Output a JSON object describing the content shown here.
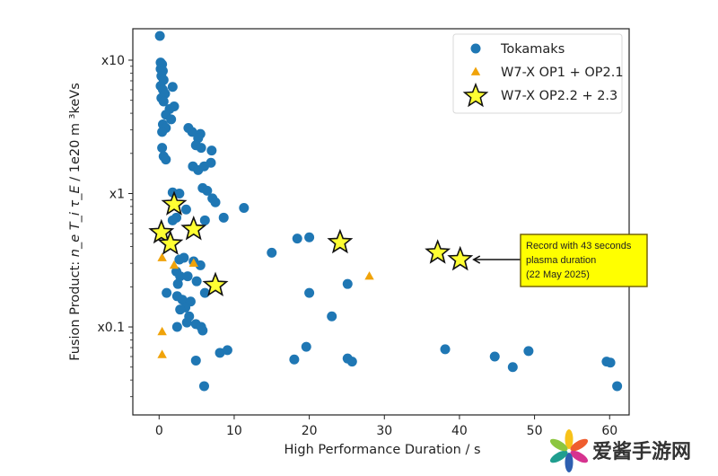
{
  "chart_data": {
    "type": "scatter",
    "title": "",
    "xlabel": "High Performance Duration / s",
    "ylabel_parts": {
      "prefix": "Fusion Product:  ",
      "math": "n_e T_i τ_E",
      "suffix": " /  1e20 m  ³keVs"
    },
    "xlim": [
      -3.5,
      62.6
    ],
    "ylim": [
      0.0219,
      17.2
    ],
    "yscale": "log",
    "x_ticks": [
      {
        "value": 0,
        "label": "0"
      },
      {
        "value": 10,
        "label": "10"
      },
      {
        "value": 20,
        "label": "20"
      },
      {
        "value": 30,
        "label": "30"
      },
      {
        "value": 40,
        "label": "40"
      },
      {
        "value": 50,
        "label": "50"
      },
      {
        "value": 60,
        "label": "60"
      }
    ],
    "y_ticks": [
      {
        "value": 10,
        "label": "x10"
      },
      {
        "value": 1,
        "label": "x1"
      },
      {
        "value": 0.1,
        "label": "x0.1"
      }
    ],
    "grid": false,
    "legend_position": "top-right",
    "series": [
      {
        "name": "Tokamaks",
        "marker": "circle",
        "color": "#1f77b4",
        "points": [
          [
            0.1,
            15.2
          ],
          [
            0.2,
            9.6
          ],
          [
            0.4,
            9.3
          ],
          [
            0.2,
            8.6
          ],
          [
            0.5,
            8.3
          ],
          [
            0.3,
            7.6
          ],
          [
            0.6,
            7.1
          ],
          [
            0.2,
            6.4
          ],
          [
            0.5,
            6.0
          ],
          [
            0.8,
            5.6
          ],
          [
            1.8,
            6.3
          ],
          [
            0.3,
            5.2
          ],
          [
            0.6,
            4.9
          ],
          [
            1.4,
            4.3
          ],
          [
            2.0,
            4.5
          ],
          [
            0.9,
            3.9
          ],
          [
            1.6,
            3.6
          ],
          [
            0.5,
            3.3
          ],
          [
            0.9,
            3.1
          ],
          [
            0.4,
            2.9
          ],
          [
            3.9,
            3.1
          ],
          [
            4.4,
            2.9
          ],
          [
            5.5,
            2.8
          ],
          [
            5.2,
            2.6
          ],
          [
            4.9,
            2.3
          ],
          [
            5.6,
            2.2
          ],
          [
            7.0,
            2.1
          ],
          [
            0.4,
            2.2
          ],
          [
            0.6,
            1.9
          ],
          [
            0.9,
            1.8
          ],
          [
            4.5,
            1.6
          ],
          [
            5.2,
            1.5
          ],
          [
            6.0,
            1.6
          ],
          [
            6.9,
            1.7
          ],
          [
            2.7,
            1.0
          ],
          [
            5.8,
            1.1
          ],
          [
            6.4,
            1.05
          ],
          [
            7.1,
            0.92
          ],
          [
            7.5,
            0.86
          ],
          [
            8.6,
            0.66
          ],
          [
            11.3,
            0.78
          ],
          [
            1.8,
            1.02
          ],
          [
            3.6,
            0.76
          ],
          [
            2.3,
            0.66
          ],
          [
            1.8,
            0.63
          ],
          [
            6.1,
            0.63
          ],
          [
            2.7,
            0.32
          ],
          [
            3.3,
            0.33
          ],
          [
            4.6,
            0.31
          ],
          [
            5.5,
            0.29
          ],
          [
            15.0,
            0.36
          ],
          [
            18.4,
            0.46
          ],
          [
            20.0,
            0.47
          ],
          [
            25.1,
            0.21
          ],
          [
            20.0,
            0.18
          ],
          [
            23.0,
            0.12
          ],
          [
            2.3,
            0.26
          ],
          [
            2.8,
            0.24
          ],
          [
            2.5,
            0.21
          ],
          [
            3.8,
            0.24
          ],
          [
            5.0,
            0.22
          ],
          [
            6.1,
            0.18
          ],
          [
            1.0,
            0.18
          ],
          [
            2.4,
            0.17
          ],
          [
            3.1,
            0.16
          ],
          [
            4.2,
            0.155
          ],
          [
            3.5,
            0.14
          ],
          [
            2.8,
            0.135
          ],
          [
            4.0,
            0.12
          ],
          [
            2.4,
            0.1
          ],
          [
            3.7,
            0.108
          ],
          [
            4.9,
            0.105
          ],
          [
            5.6,
            0.1
          ],
          [
            5.8,
            0.094
          ],
          [
            4.9,
            0.056
          ],
          [
            6.0,
            0.036
          ],
          [
            8.1,
            0.064
          ],
          [
            9.1,
            0.067
          ],
          [
            18.0,
            0.057
          ],
          [
            19.6,
            0.071
          ],
          [
            25.1,
            0.058
          ],
          [
            25.7,
            0.055
          ],
          [
            38.1,
            0.068
          ],
          [
            44.7,
            0.06
          ],
          [
            47.1,
            0.05
          ],
          [
            49.2,
            0.066
          ],
          [
            59.6,
            0.055
          ],
          [
            60.1,
            0.054
          ],
          [
            61.0,
            0.036
          ]
        ]
      },
      {
        "name": "W7-X OP1 + OP2.1",
        "marker": "triangle",
        "color": "#f0a30a",
        "points": [
          [
            0.3,
            0.54
          ],
          [
            0.4,
            0.33
          ],
          [
            2.0,
            0.29
          ],
          [
            4.6,
            0.3
          ],
          [
            28.0,
            0.24
          ],
          [
            0.4,
            0.092
          ],
          [
            0.4,
            0.062
          ]
        ]
      },
      {
        "name": "W7-X OP2.2 + 2.3",
        "marker": "star",
        "color": "#ffff33",
        "edgecolor": "#111111",
        "points": [
          [
            2.0,
            0.83
          ],
          [
            0.3,
            0.51
          ],
          [
            4.6,
            0.54
          ],
          [
            1.5,
            0.42
          ],
          [
            7.5,
            0.205
          ],
          [
            24.1,
            0.43
          ],
          [
            37.1,
            0.36
          ],
          [
            40.1,
            0.32
          ]
        ]
      }
    ],
    "annotation": {
      "lines": [
        "Record with 43 seconds",
        "plasma duration",
        "(22 May 2025)"
      ],
      "target": [
        40.1,
        0.32
      ],
      "box_color": "#ffff00",
      "border_color": "#6b5a00"
    }
  },
  "watermark": {
    "text": "爱酱手游网",
    "petal_colors": [
      "#f7c21a",
      "#ef5d2e",
      "#d6338f",
      "#2e5fb0",
      "#1f9e8f",
      "#8cc63f"
    ]
  }
}
